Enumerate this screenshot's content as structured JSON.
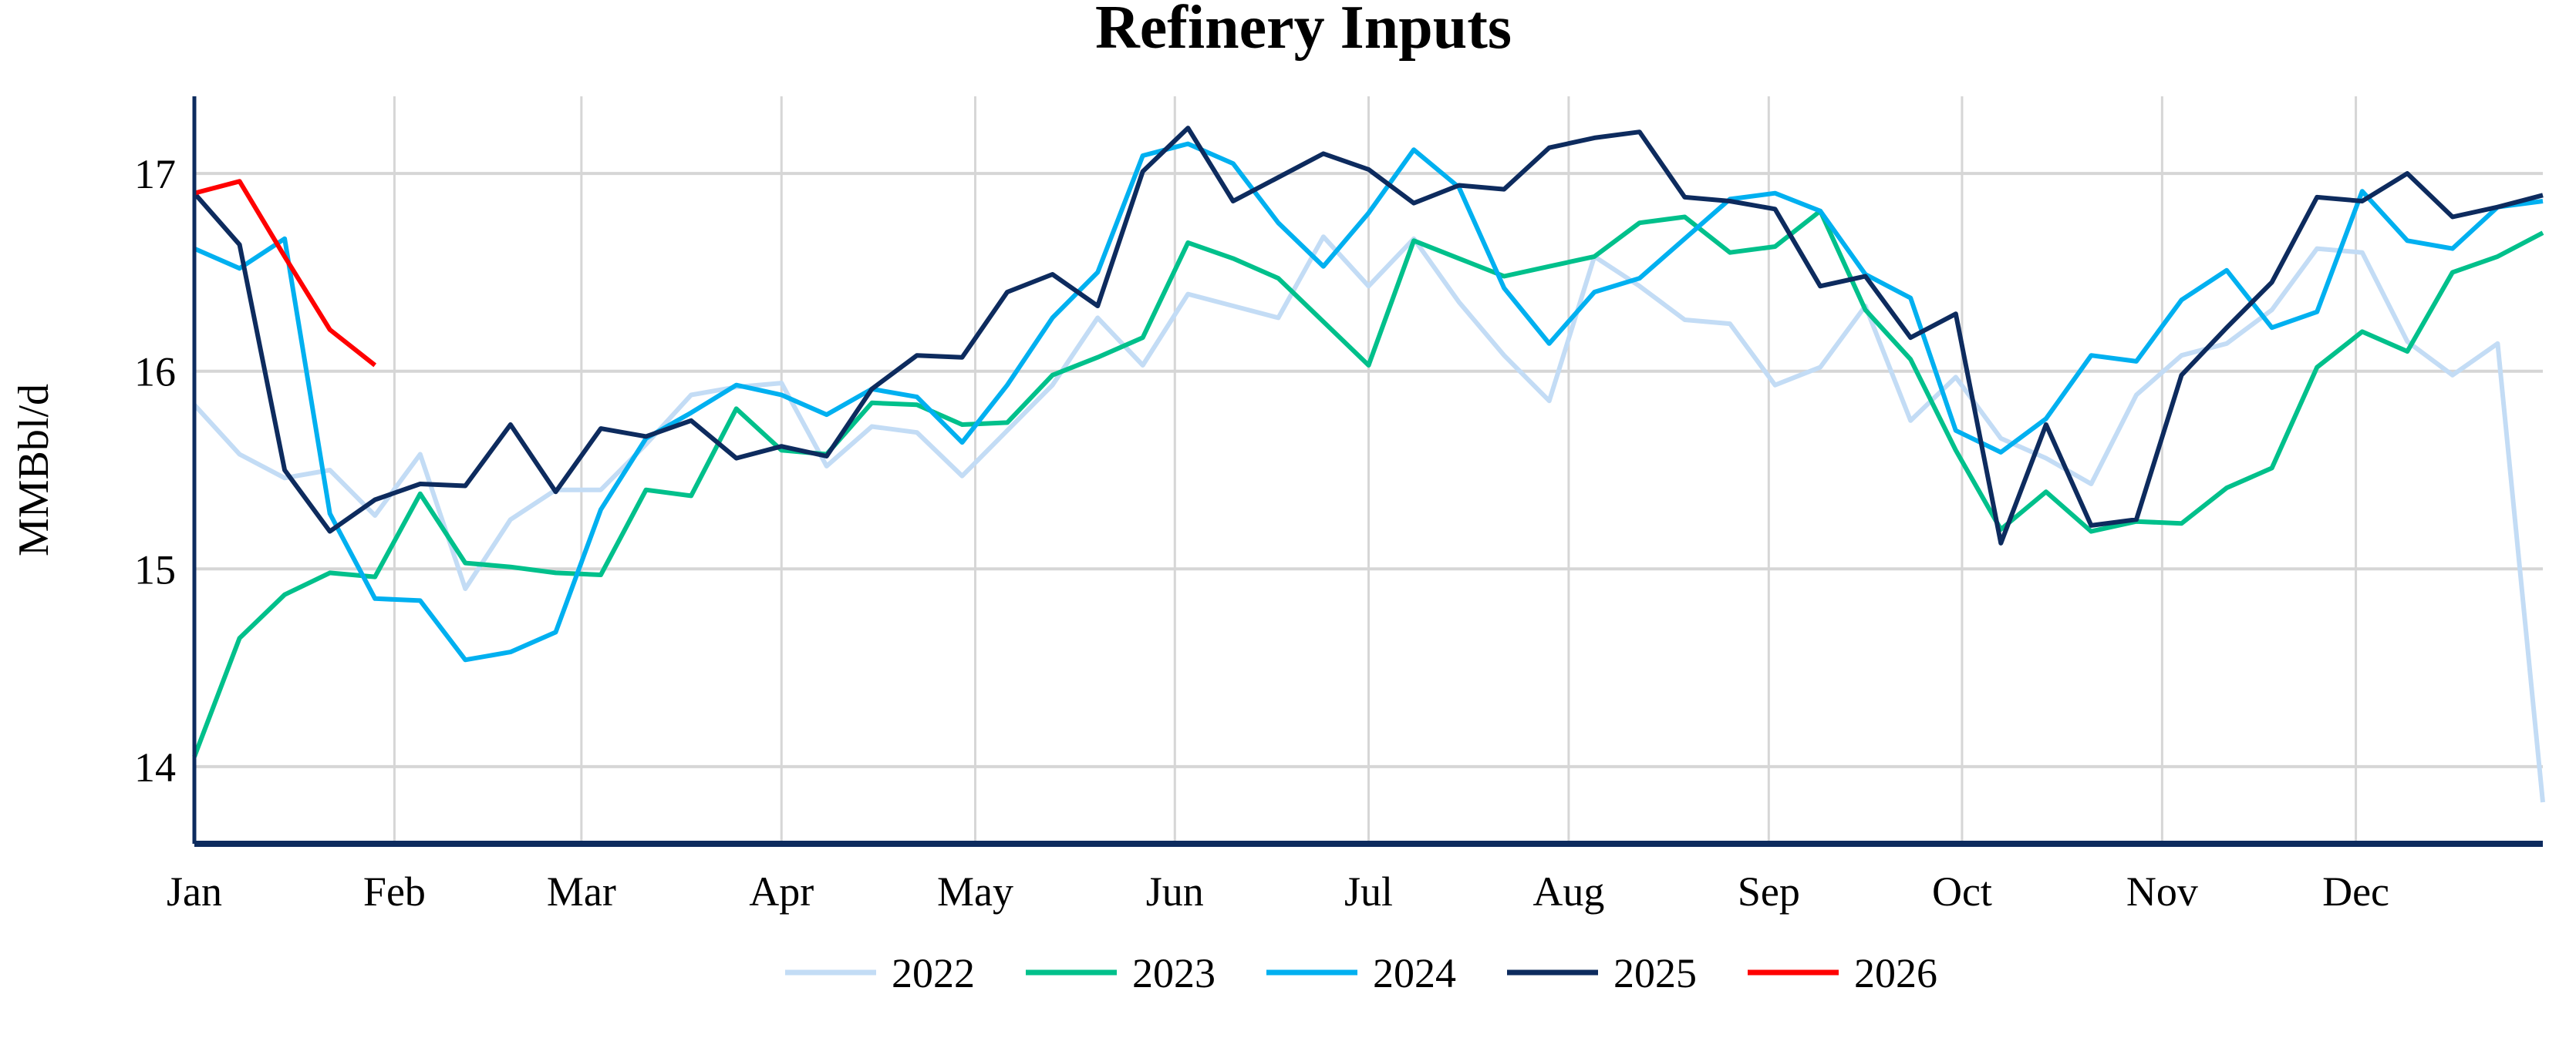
{
  "chart_data": {
    "type": "line",
    "title": "Refinery Inputs",
    "xlabel": "",
    "ylabel": "MMBbl/d",
    "x_unit": "week of year",
    "xlim": [
      0,
      52
    ],
    "ylim": [
      13.61,
      17.39
    ],
    "y_ticks": [
      14,
      15,
      16,
      17
    ],
    "y_tick_labels": [
      "14",
      "15",
      "16",
      "17"
    ],
    "x_ticks": [
      0,
      4.43,
      8.57,
      13.0,
      17.29,
      21.71,
      26.0,
      30.43,
      34.86,
      39.14,
      43.57,
      47.86
    ],
    "x_tick_labels": [
      "Jan",
      "Feb",
      "Mar",
      "Apr",
      "May",
      "Jun",
      "Jul",
      "Aug",
      "Sep",
      "Oct",
      "Nov",
      "Dec"
    ],
    "grid": true,
    "legend_position": "bottom-center",
    "series": [
      {
        "name": "2022",
        "color": "#c3dcf5",
        "values": [
          15.83,
          15.58,
          15.46,
          15.5,
          15.27,
          15.58,
          14.9,
          15.25,
          15.4,
          15.4,
          15.63,
          15.88,
          15.92,
          15.94,
          15.52,
          15.72,
          15.69,
          15.47,
          15.7,
          15.93,
          16.27,
          16.03,
          16.39,
          16.33,
          16.27,
          16.68,
          16.43,
          16.67,
          16.35,
          16.08,
          15.85,
          16.58,
          16.43,
          16.26,
          16.24,
          15.93,
          16.02,
          16.33,
          15.75,
          15.97,
          15.66,
          15.56,
          15.43,
          15.88,
          16.08,
          16.14,
          16.31,
          16.62,
          16.6,
          16.15,
          15.98,
          16.14,
          13.82
        ]
      },
      {
        "name": "2023",
        "color": "#00c08b",
        "values": [
          14.05,
          14.65,
          14.87,
          14.98,
          14.96,
          15.38,
          15.03,
          15.01,
          14.98,
          14.97,
          15.4,
          15.37,
          15.81,
          15.6,
          15.58,
          15.84,
          15.83,
          15.73,
          15.74,
          15.98,
          16.07,
          16.17,
          16.65,
          16.57,
          16.47,
          16.25,
          16.03,
          16.66,
          16.57,
          16.48,
          16.53,
          16.58,
          16.75,
          16.78,
          16.6,
          16.63,
          16.81,
          16.31,
          16.06,
          15.6,
          15.2,
          15.39,
          15.19,
          15.24,
          15.23,
          15.41,
          15.51,
          16.02,
          16.2,
          16.1,
          16.5,
          16.58,
          16.7
        ]
      },
      {
        "name": "2024",
        "color": "#00b0f0",
        "values": [
          16.62,
          16.52,
          16.67,
          15.28,
          14.85,
          14.84,
          14.54,
          14.58,
          14.68,
          15.3,
          15.66,
          15.79,
          15.93,
          15.88,
          15.78,
          15.91,
          15.87,
          15.64,
          15.93,
          16.27,
          16.5,
          17.09,
          17.15,
          17.05,
          16.75,
          16.53,
          16.8,
          17.12,
          16.93,
          16.42,
          16.14,
          16.4,
          16.47,
          16.67,
          16.87,
          16.9,
          16.81,
          16.49,
          16.37,
          15.7,
          15.59,
          15.76,
          16.08,
          16.05,
          16.36,
          16.51,
          16.22,
          16.3,
          16.91,
          16.66,
          16.62,
          16.83,
          16.86
        ]
      },
      {
        "name": "2025",
        "color": "#0d2b5e",
        "values": [
          16.9,
          16.64,
          15.5,
          15.19,
          15.35,
          15.43,
          15.42,
          15.73,
          15.39,
          15.71,
          15.67,
          15.75,
          15.56,
          15.62,
          15.57,
          15.91,
          16.08,
          16.07,
          16.4,
          16.49,
          16.33,
          17.01,
          17.23,
          16.86,
          16.98,
          17.1,
          17.02,
          16.85,
          16.94,
          16.92,
          17.13,
          17.18,
          17.21,
          16.88,
          16.86,
          16.82,
          16.43,
          16.48,
          16.17,
          16.29,
          15.13,
          15.73,
          15.22,
          15.25,
          15.98,
          16.22,
          16.45,
          16.88,
          16.86,
          17.0,
          16.78,
          16.83,
          16.89
        ]
      },
      {
        "name": "2026",
        "color": "#ff0000",
        "values": [
          16.9,
          16.96,
          16.58,
          16.21,
          16.03
        ]
      }
    ]
  }
}
